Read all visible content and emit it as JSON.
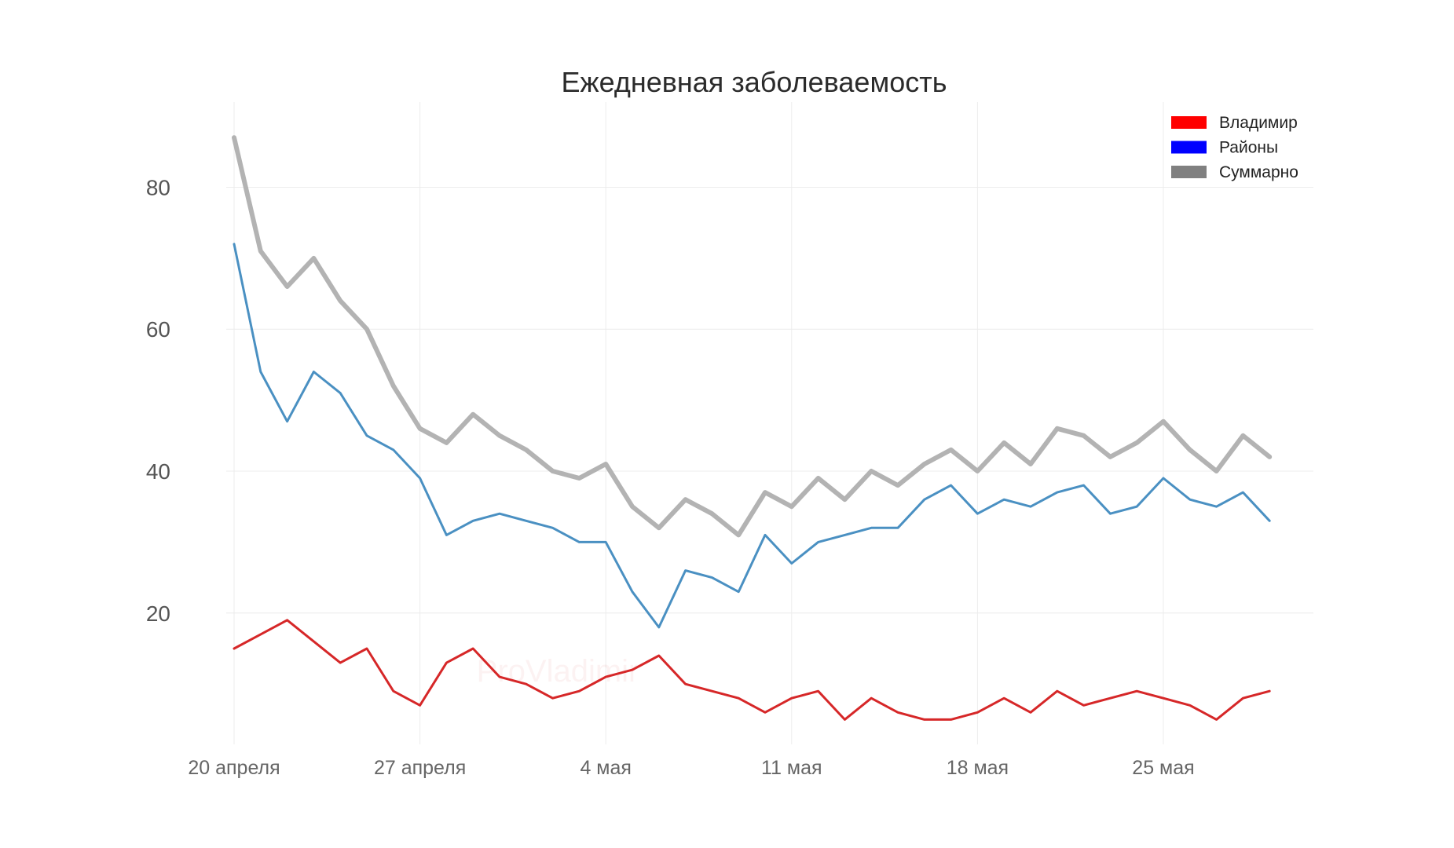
{
  "chart_data": {
    "type": "line",
    "title": "Ежедневная заболеваемость",
    "xlabel": "",
    "ylabel": "",
    "x": [
      "20 апреля",
      "21 апреля",
      "22 апреля",
      "23 апреля",
      "24 апреля",
      "25 апреля",
      "26 апреля",
      "27 апреля",
      "28 апреля",
      "29 апреля",
      "30 апреля",
      "1 мая",
      "2 мая",
      "3 мая",
      "4 мая",
      "5 мая",
      "6 мая",
      "7 мая",
      "8 мая",
      "9 мая",
      "10 мая",
      "11 мая",
      "12 мая",
      "13 мая",
      "14 мая",
      "15 мая",
      "16 мая",
      "17 мая",
      "18 мая",
      "19 мая",
      "20 мая",
      "21 мая",
      "22 мая",
      "23 мая",
      "24 мая",
      "25 мая",
      "26 мая",
      "27 мая",
      "28 мая",
      "29 мая"
    ],
    "x_ticks": [
      "20 апреля",
      "27 апреля",
      "4 мая",
      "11 мая",
      "18 мая",
      "25 мая"
    ],
    "y_ticks": [
      20,
      40,
      60,
      80
    ],
    "ylim": [
      1.5,
      92
    ],
    "grid": true,
    "legend_position": "top-right",
    "series": [
      {
        "name": "Владимир",
        "color": "#d62728",
        "legend_color": "#ff0000",
        "values": [
          15,
          17,
          19,
          16,
          13,
          15,
          9,
          7,
          13,
          15,
          11,
          10,
          8,
          9,
          11,
          12,
          14,
          10,
          9,
          8,
          6,
          8,
          9,
          5,
          8,
          6,
          5,
          5,
          6,
          8,
          6,
          9,
          7,
          8,
          9,
          8,
          7,
          5,
          8,
          9
        ]
      },
      {
        "name": "Районы",
        "color": "#4a90c2",
        "legend_color": "#0000ff",
        "values": [
          72,
          54,
          47,
          54,
          51,
          45,
          43,
          39,
          31,
          33,
          34,
          33,
          32,
          30,
          30,
          23,
          18,
          26,
          25,
          23,
          31,
          27,
          30,
          31,
          32,
          32,
          36,
          38,
          34,
          36,
          35,
          37,
          38,
          34,
          35,
          39,
          36,
          35,
          37,
          33
        ]
      },
      {
        "name": "Суммарно",
        "color": "#b3b3b3",
        "legend_color": "#808080",
        "values": [
          87,
          71,
          66,
          70,
          64,
          60,
          52,
          46,
          44,
          48,
          45,
          43,
          40,
          39,
          41,
          35,
          32,
          36,
          34,
          31,
          37,
          35,
          39,
          36,
          40,
          38,
          41,
          43,
          40,
          44,
          41,
          46,
          45,
          42,
          44,
          47,
          43,
          40,
          45,
          42
        ]
      }
    ],
    "watermark": "ProVladimir"
  }
}
